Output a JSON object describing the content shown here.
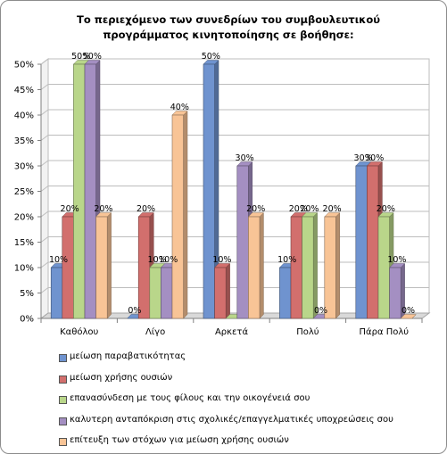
{
  "chart_data": {
    "type": "bar",
    "title": "Το περιεχόμενο των συνεδρίων του συμβουλευτικού προγράμματος κινητοποίησης σε βοήθησε:",
    "categories": [
      "Καθόλου",
      "Λίγο",
      "Αρκετά",
      "Πολύ",
      "Πάρα Πολύ"
    ],
    "ylim": [
      0,
      50
    ],
    "yticks": [
      "0%",
      "5%",
      "10%",
      "15%",
      "20%",
      "25%",
      "30%",
      "35%",
      "40%",
      "45%",
      "50%"
    ],
    "ytick_values": [
      0,
      5,
      10,
      15,
      20,
      25,
      30,
      35,
      40,
      45,
      50
    ],
    "grid": true,
    "legend_position": "bottom",
    "series": [
      {
        "name": "μείωση παραβατικότητας",
        "color": "#6f93cf",
        "values": [
          10,
          0,
          50,
          10,
          30
        ]
      },
      {
        "name": "μείωση χρήσης ουσιών",
        "color": "#d26f6d",
        "values": [
          20,
          20,
          10,
          20,
          30
        ]
      },
      {
        "name": "επανασύνδεση με τους φίλους και την οικογένειά σου",
        "color": "#b9d68a",
        "values": [
          50,
          10,
          0,
          20,
          20
        ]
      },
      {
        "name": "καλυτερη ανταπόκριση στις σχολικές/επαγγελματικές υποχρεώσεις σου",
        "color": "#a48fc2",
        "values": [
          50,
          10,
          30,
          0,
          10
        ]
      },
      {
        "name": "επίτευξη των στόχων για μείωση χρήσης ουσιών",
        "color": "#f8c496",
        "values": [
          20,
          40,
          20,
          20,
          0
        ]
      }
    ],
    "data_labels": [
      [
        "10%",
        "0%",
        "50%",
        "10%",
        "30%"
      ],
      [
        "20%",
        "20%",
        "10%",
        "20%",
        "30%"
      ],
      [
        "50%",
        "10%",
        "",
        "20%",
        "20%"
      ],
      [
        "50%",
        "10%",
        "30%",
        "0%",
        "10%"
      ],
      [
        "20%",
        "40%",
        "20%",
        "20%",
        "0%"
      ]
    ]
  }
}
